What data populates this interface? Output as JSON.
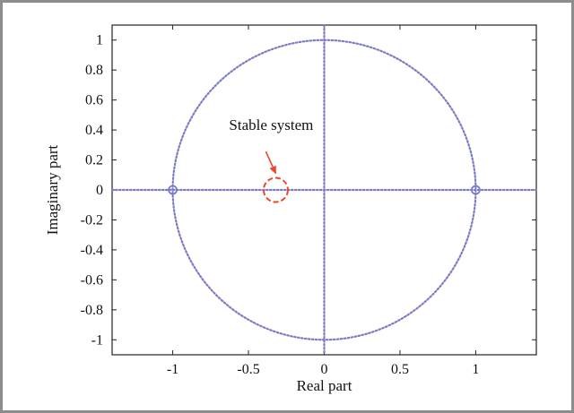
{
  "chart_data": {
    "type": "scatter",
    "title": "",
    "xlabel": "Real part",
    "ylabel": "Imaginary part",
    "xlim": [
      -1.4,
      1.4
    ],
    "ylim": [
      -1.1,
      1.1
    ],
    "xticks": [
      -1,
      -0.5,
      0,
      0.5,
      1
    ],
    "xtick_labels": [
      "-1",
      "-0.5",
      "0",
      "0.5",
      "1"
    ],
    "yticks": [
      1,
      0.8,
      0.6,
      0.4,
      0.2,
      0,
      -0.2,
      -0.4,
      -0.6,
      -0.8,
      -1
    ],
    "ytick_labels": [
      "1",
      "0.8",
      "0.6",
      "0.4",
      "0.2",
      "0",
      "-0.2",
      "-0.4",
      "-0.6",
      "-0.8",
      "-1"
    ],
    "grid": false,
    "unit_circle": {
      "center": [
        0,
        0
      ],
      "radius": 1,
      "style": "dotted",
      "color": "#7b7bc8"
    },
    "axis_lines": {
      "style": "dotted",
      "color": "#7b7bc8"
    },
    "markers": [
      {
        "x": -1,
        "y": 0,
        "shape": "circle",
        "color": "#7b7bc8"
      },
      {
        "x": 1,
        "y": 0,
        "shape": "circle",
        "color": "#7b7bc8"
      }
    ],
    "highlight": {
      "x": -0.32,
      "y": 0,
      "radius": 0.08,
      "color": "#e8492a",
      "style": "dashed"
    },
    "annotation": {
      "text": "Stable system",
      "x": -0.35,
      "y": 0.4,
      "arrow_to": [
        -0.32,
        0.11
      ],
      "color": "#e8492a"
    }
  }
}
